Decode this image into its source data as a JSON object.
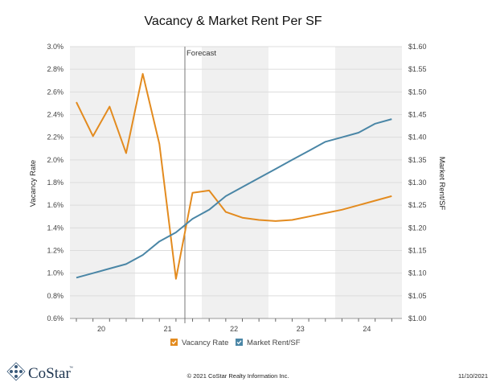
{
  "chart_data": {
    "type": "line",
    "title": "Vacancy & Market Rent Per SF",
    "ylabel_left": "Vacancy Rate",
    "ylabel_right": "Market Rent/SF",
    "ylim_left": [
      0.6,
      3.0
    ],
    "ylim_right": [
      1.0,
      1.6
    ],
    "left_ticks": [
      "0.6%",
      "0.8%",
      "1.0%",
      "1.2%",
      "1.4%",
      "1.6%",
      "1.8%",
      "2.0%",
      "2.2%",
      "2.4%",
      "2.6%",
      "2.8%",
      "3.0%"
    ],
    "right_ticks": [
      "$1.00",
      "$1.05",
      "$1.10",
      "$1.15",
      "$1.20",
      "$1.25",
      "$1.30",
      "$1.35",
      "$1.40",
      "$1.45",
      "$1.50",
      "$1.55",
      "$1.60"
    ],
    "x_tick_labels": [
      "20",
      "21",
      "22",
      "23",
      "24"
    ],
    "annotation": "Forecast",
    "legend_position": "bottom",
    "grid": true,
    "series": [
      {
        "name": "Vacancy Rate",
        "axis": "left",
        "color": "#E38B1F",
        "values": [
          2.51,
          2.21,
          2.47,
          2.06,
          2.76,
          2.14,
          0.95,
          1.71,
          1.73,
          1.54,
          1.49,
          1.47,
          1.46,
          1.47,
          1.5,
          1.53,
          1.56,
          1.6,
          1.64,
          1.68
        ]
      },
      {
        "name": "Market Rent/SF",
        "axis": "right",
        "color": "#4A86A6",
        "values": [
          1.09,
          1.1,
          1.11,
          1.12,
          1.14,
          1.17,
          1.19,
          1.22,
          1.24,
          1.27,
          1.29,
          1.31,
          1.33,
          1.35,
          1.37,
          1.39,
          1.4,
          1.41,
          1.43,
          1.44
        ]
      }
    ]
  },
  "footer": {
    "brand": "CoStar",
    "trademark": "™",
    "copyright": "© 2021 CoStar Realty Information Inc.",
    "date": "11/10/2021"
  }
}
